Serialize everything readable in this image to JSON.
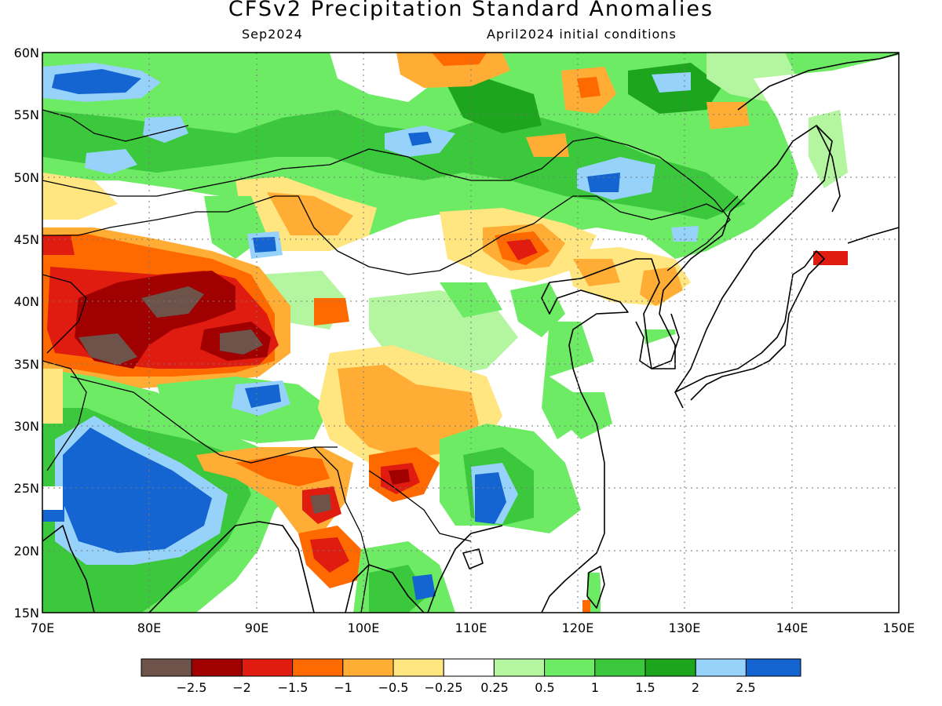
{
  "title": "CFSv2 Precipitation Standard Anomalies",
  "subtitle_left": "Sep2024",
  "subtitle_right": "April2024 initial conditions",
  "map": {
    "lon_range": [
      70,
      150
    ],
    "lat_range": [
      15,
      60
    ],
    "lon_ticks": [
      "70E",
      "80E",
      "90E",
      "100E",
      "110E",
      "120E",
      "130E",
      "140E",
      "150E"
    ],
    "lat_ticks": [
      "60N",
      "55N",
      "50N",
      "45N",
      "40N",
      "35N",
      "30N",
      "25N",
      "20N",
      "15N"
    ],
    "gridlines": "dotted"
  },
  "colorbar": {
    "colors": [
      "#6e534a",
      "#a00000",
      "#e01b10",
      "#ff6a00",
      "#ffad35",
      "#ffe680",
      "#ffffff",
      "#b4f5a0",
      "#6eeb64",
      "#3cc83c",
      "#1ea51e",
      "#96d2fa",
      "#1464d2"
    ],
    "labels": [
      "−2.5",
      "−2",
      "−1.5",
      "−1",
      "−0.5",
      "−0.25",
      "0.25",
      "0.5",
      "1",
      "1.5",
      "2",
      "2.5"
    ]
  },
  "anomaly_regions": [
    {
      "level": "-2.5",
      "lon": [
        76,
        82
      ],
      "lat": [
        36,
        41
      ]
    },
    {
      "level": "-2.5",
      "lon": [
        86,
        90
      ],
      "lat": [
        35,
        37
      ]
    },
    {
      "level": "-2",
      "lon": [
        72,
        92
      ],
      "lat": [
        33,
        42
      ]
    },
    {
      "level": "-1.5",
      "lon": [
        112,
        118
      ],
      "lat": [
        42,
        46
      ]
    },
    {
      "level": "-1.5",
      "lon": [
        94,
        98
      ],
      "lat": [
        17,
        25
      ]
    },
    {
      "level": "-1.5",
      "lon": [
        102,
        106
      ],
      "lat": [
        25,
        27
      ]
    },
    {
      "level": "-1",
      "lon": [
        70,
        78
      ],
      "lat": [
        42,
        46
      ]
    },
    {
      "level": "-1",
      "lon": [
        95,
        106
      ],
      "lat": [
        24,
        30
      ]
    },
    {
      "level": "-0.5",
      "lon": [
        90,
        110
      ],
      "lat": [
        28,
        48
      ]
    },
    {
      "level": "1",
      "lon": [
        70,
        150
      ],
      "lat": [
        46,
        60
      ]
    },
    {
      "level": "1",
      "lon": [
        70,
        90
      ],
      "lat": [
        15,
        32
      ]
    },
    {
      "level": "2",
      "lon": [
        71,
        87
      ],
      "lat": [
        18,
        32
      ]
    },
    {
      "level": "2.5",
      "lon": [
        73,
        84
      ],
      "lat": [
        19,
        29
      ]
    },
    {
      "level": "2.5",
      "lon": [
        122,
        126
      ],
      "lat": [
        48,
        52
      ]
    },
    {
      "level": "2.5",
      "lon": [
        90,
        94
      ],
      "lat": [
        31,
        33
      ]
    },
    {
      "level": "2.5",
      "lon": [
        73,
        79
      ],
      "lat": [
        56,
        58
      ]
    },
    {
      "level": "-2",
      "lon": [
        142,
        145
      ],
      "lat": [
        43,
        44
      ]
    }
  ]
}
